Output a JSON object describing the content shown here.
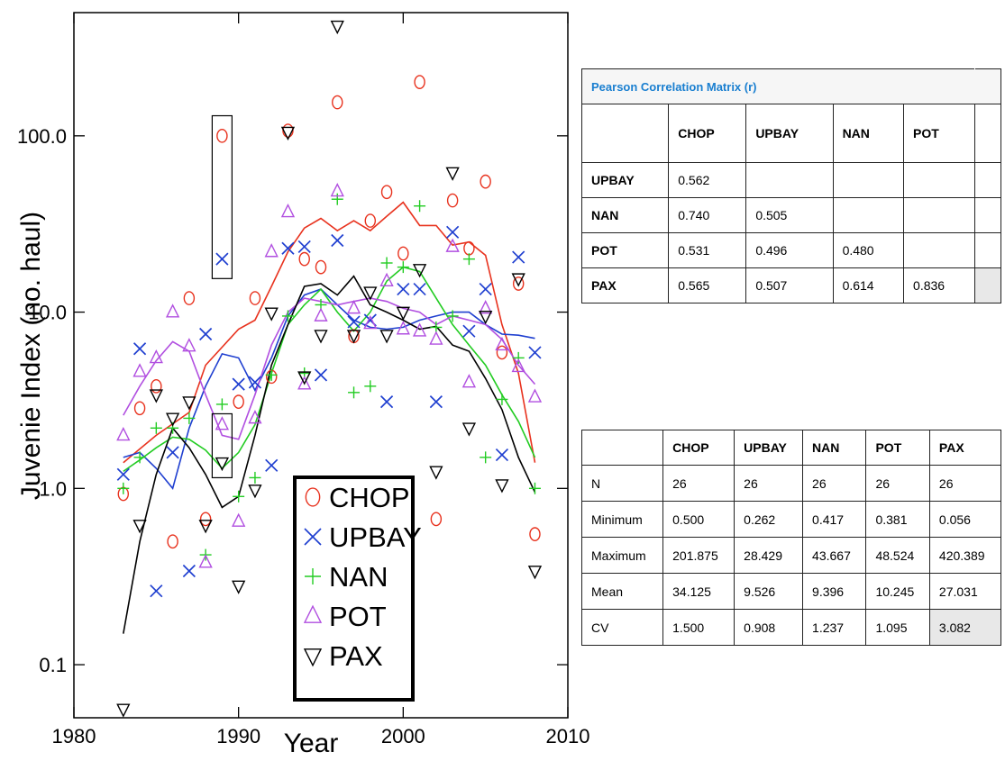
{
  "chart_data": {
    "type": "scatter",
    "xlabel": "Year",
    "ylabel": "Juvenie Index (no. haul)",
    "xlim": [
      1980,
      2010
    ],
    "ylim": [
      0.05,
      500
    ],
    "yscale": "log",
    "x_ticks": [
      "1980",
      "1990",
      "2000",
      "2010"
    ],
    "y_ticks": [
      "0.1",
      "1.0",
      "10.0",
      "100.0"
    ],
    "legend_placement": "bottom-right of plot",
    "series": [
      {
        "name": "CHOP",
        "color": "#e8321e",
        "marker": "circle",
        "points": [
          [
            1983,
            0.93
          ],
          [
            1984,
            2.85
          ],
          [
            1985,
            3.8
          ],
          [
            1986,
            0.5
          ],
          [
            1987,
            12
          ],
          [
            1988,
            0.67
          ],
          [
            1989,
            100
          ],
          [
            1990,
            3.1
          ],
          [
            1991,
            12
          ],
          [
            1992,
            4.3
          ],
          [
            1993,
            107
          ],
          [
            1994,
            20
          ],
          [
            1995,
            18
          ],
          [
            1996,
            155
          ],
          [
            1997,
            7.3
          ],
          [
            1998,
            33
          ],
          [
            1999,
            48
          ],
          [
            2000,
            21.5
          ],
          [
            2001,
            201.9
          ],
          [
            2002,
            0.67
          ],
          [
            2003,
            43
          ],
          [
            2004,
            23
          ],
          [
            2005,
            55
          ],
          [
            2006,
            5.9
          ],
          [
            2007,
            14.5
          ],
          [
            2008,
            0.55
          ]
        ],
        "trend": [
          [
            1983,
            1.4
          ],
          [
            1985,
            2.0
          ],
          [
            1987,
            2.7
          ],
          [
            1988,
            5.0
          ],
          [
            1990,
            8.0
          ],
          [
            1991,
            9.0
          ],
          [
            1992,
            14
          ],
          [
            1993,
            22
          ],
          [
            1994,
            30
          ],
          [
            1995,
            34
          ],
          [
            1996,
            29
          ],
          [
            1997,
            33
          ],
          [
            1998,
            29
          ],
          [
            1999,
            35
          ],
          [
            2000,
            42
          ],
          [
            2001,
            31
          ],
          [
            2002,
            31
          ],
          [
            2003,
            24
          ],
          [
            2004,
            25
          ],
          [
            2005,
            21
          ],
          [
            2006,
            8.5
          ],
          [
            2007,
            4.5
          ],
          [
            2008,
            1.4
          ]
        ]
      },
      {
        "name": "UPBAY",
        "color": "#1f3fd0",
        "marker": "x",
        "points": [
          [
            1983,
            1.2
          ],
          [
            1984,
            6.2
          ],
          [
            1985,
            0.262
          ],
          [
            1986,
            1.6
          ],
          [
            1987,
            0.34
          ],
          [
            1988,
            7.5
          ],
          [
            1989,
            20
          ],
          [
            1990,
            3.9
          ],
          [
            1991,
            4.0
          ],
          [
            1992,
            1.35
          ],
          [
            1993,
            23
          ],
          [
            1994,
            23.5
          ],
          [
            1995,
            4.4
          ],
          [
            1996,
            25.5
          ],
          [
            1997,
            8.8
          ],
          [
            1998,
            9.0
          ],
          [
            1999,
            3.1
          ],
          [
            2000,
            13.5
          ],
          [
            2001,
            13.5
          ],
          [
            2002,
            3.1
          ],
          [
            2003,
            28.4
          ],
          [
            2004,
            7.8
          ],
          [
            2005,
            13.5
          ],
          [
            2006,
            1.55
          ],
          [
            2007,
            20.5
          ],
          [
            2008,
            5.9
          ]
        ],
        "trend": [
          [
            1983,
            1.5
          ],
          [
            1984,
            1.6
          ],
          [
            1985,
            1.3
          ],
          [
            1986,
            1.0
          ],
          [
            1987,
            2.2
          ],
          [
            1988,
            3.8
          ],
          [
            1989,
            5.8
          ],
          [
            1990,
            5.5
          ],
          [
            1991,
            3.6
          ],
          [
            1992,
            5.5
          ],
          [
            1993,
            9.5
          ],
          [
            1994,
            12.5
          ],
          [
            1995,
            13.5
          ],
          [
            1996,
            11
          ],
          [
            1997,
            9.0
          ],
          [
            1998,
            8.2
          ],
          [
            1999,
            8.0
          ],
          [
            2000,
            8.2
          ],
          [
            2001,
            9.0
          ],
          [
            2002,
            9.5
          ],
          [
            2003,
            10
          ],
          [
            2004,
            10
          ],
          [
            2005,
            8.5
          ],
          [
            2006,
            7.5
          ],
          [
            2007,
            7.4
          ],
          [
            2008,
            7.1
          ]
        ]
      },
      {
        "name": "NAN",
        "color": "#22cc22",
        "marker": "plus",
        "points": [
          [
            1983,
            1.0
          ],
          [
            1984,
            1.5
          ],
          [
            1985,
            2.2
          ],
          [
            1986,
            2.2
          ],
          [
            1987,
            2.5
          ],
          [
            1988,
            0.42
          ],
          [
            1989,
            3.0
          ],
          [
            1990,
            0.9
          ],
          [
            1991,
            1.15
          ],
          [
            1992,
            4.4
          ],
          [
            1993,
            9.5
          ],
          [
            1994,
            4.5
          ],
          [
            1995,
            11
          ],
          [
            1996,
            43.7
          ],
          [
            1997,
            3.5
          ],
          [
            1998,
            3.8
          ],
          [
            1999,
            19
          ],
          [
            2000,
            18
          ],
          [
            2001,
            40
          ],
          [
            2002,
            8.2
          ],
          [
            2003,
            9.5
          ],
          [
            2004,
            20
          ],
          [
            2005,
            1.5
          ],
          [
            2006,
            3.2
          ],
          [
            2007,
            5.5
          ],
          [
            2008,
            1.0
          ]
        ],
        "trend": [
          [
            1983,
            1.25
          ],
          [
            1984,
            1.45
          ],
          [
            1985,
            1.7
          ],
          [
            1986,
            1.95
          ],
          [
            1987,
            1.9
          ],
          [
            1988,
            1.65
          ],
          [
            1989,
            1.3
          ],
          [
            1990,
            1.6
          ],
          [
            1991,
            2.3
          ],
          [
            1992,
            4.5
          ],
          [
            1993,
            8.5
          ],
          [
            1994,
            11
          ],
          [
            1995,
            13.5
          ],
          [
            1996,
            10
          ],
          [
            1997,
            7.8
          ],
          [
            1998,
            10
          ],
          [
            1999,
            15
          ],
          [
            2000,
            18
          ],
          [
            2001,
            17
          ],
          [
            2002,
            12
          ],
          [
            2003,
            8.5
          ],
          [
            2004,
            6.5
          ],
          [
            2005,
            5.0
          ],
          [
            2006,
            3.4
          ],
          [
            2007,
            2.4
          ],
          [
            2008,
            1.5
          ]
        ]
      },
      {
        "name": "POT",
        "color": "#b14fe0",
        "marker": "triangle",
        "points": [
          [
            1983,
            2.0
          ],
          [
            1984,
            4.6
          ],
          [
            1985,
            5.5
          ],
          [
            1986,
            10
          ],
          [
            1987,
            6.4
          ],
          [
            1988,
            0.38
          ],
          [
            1989,
            2.3
          ],
          [
            1990,
            0.65
          ],
          [
            1991,
            2.5
          ],
          [
            1992,
            22
          ],
          [
            1993,
            37
          ],
          [
            1994,
            3.9
          ],
          [
            1995,
            9.5
          ],
          [
            1996,
            48.5
          ],
          [
            1997,
            10.5
          ],
          [
            1998,
            8.6
          ],
          [
            1999,
            15
          ],
          [
            2000,
            8.0
          ],
          [
            2001,
            7.8
          ],
          [
            2002,
            7.0
          ],
          [
            2003,
            23.5
          ],
          [
            2004,
            4.0
          ],
          [
            2005,
            10.5
          ],
          [
            2006,
            6.5
          ],
          [
            2007,
            4.9
          ],
          [
            2008,
            3.3
          ]
        ],
        "trend": [
          [
            1983,
            2.6
          ],
          [
            1984,
            3.8
          ],
          [
            1985,
            5.3
          ],
          [
            1986,
            6.8
          ],
          [
            1987,
            6.0
          ],
          [
            1988,
            3.4
          ],
          [
            1989,
            2.0
          ],
          [
            1990,
            1.9
          ],
          [
            1991,
            3.4
          ],
          [
            1992,
            6.5
          ],
          [
            1993,
            10
          ],
          [
            1994,
            12
          ],
          [
            1995,
            11.5
          ],
          [
            1996,
            11
          ],
          [
            1997,
            11.5
          ],
          [
            1998,
            12
          ],
          [
            1999,
            11.5
          ],
          [
            2000,
            10.5
          ],
          [
            2001,
            10
          ],
          [
            2002,
            8.5
          ],
          [
            2003,
            9.5
          ],
          [
            2004,
            9.0
          ],
          [
            2005,
            8.5
          ],
          [
            2006,
            7.0
          ],
          [
            2007,
            5.0
          ],
          [
            2008,
            3.9
          ]
        ]
      },
      {
        "name": "PAX",
        "color": "#000000",
        "marker": "triangle-down",
        "points": [
          [
            1983,
            0.056
          ],
          [
            1984,
            0.62
          ],
          [
            1985,
            3.4
          ],
          [
            1986,
            2.5
          ],
          [
            1987,
            3.1
          ],
          [
            1988,
            0.62
          ],
          [
            1989,
            1.4
          ],
          [
            1990,
            0.28
          ],
          [
            1991,
            0.98
          ],
          [
            1992,
            9.9
          ],
          [
            1993,
            105
          ],
          [
            1994,
            4.3
          ],
          [
            1995,
            7.4
          ],
          [
            1996,
            420.4
          ],
          [
            1997,
            7.4
          ],
          [
            1998,
            13
          ],
          [
            1999,
            7.4
          ],
          [
            2000,
            10
          ],
          [
            2001,
            17.5
          ],
          [
            2002,
            1.25
          ],
          [
            2003,
            62
          ],
          [
            2004,
            2.2
          ],
          [
            2005,
            9.5
          ],
          [
            2006,
            1.05
          ],
          [
            2007,
            15.5
          ],
          [
            2008,
            0.34
          ]
        ],
        "trend": [
          [
            1983,
            0.15
          ],
          [
            1984,
            0.5
          ],
          [
            1985,
            1.2
          ],
          [
            1986,
            2.2
          ],
          [
            1987,
            1.7
          ],
          [
            1988,
            1.2
          ],
          [
            1989,
            0.78
          ],
          [
            1990,
            0.9
          ],
          [
            1991,
            2.0
          ],
          [
            1992,
            5.0
          ],
          [
            1993,
            8.5
          ],
          [
            1994,
            14
          ],
          [
            1995,
            14.5
          ],
          [
            1996,
            12.5
          ],
          [
            1997,
            16
          ],
          [
            1998,
            11
          ],
          [
            1999,
            10
          ],
          [
            2000,
            9.0
          ],
          [
            2001,
            8.0
          ],
          [
            2002,
            8.3
          ],
          [
            2003,
            6.5
          ],
          [
            2004,
            6.0
          ],
          [
            2005,
            4.2
          ],
          [
            2006,
            2.8
          ],
          [
            2007,
            1.5
          ],
          [
            2008,
            0.95
          ]
        ]
      }
    ]
  },
  "correlation_table": {
    "title": "Pearson Correlation Matrix (r)",
    "columns": [
      "CHOP",
      "UPBAY",
      "NAN",
      "POT"
    ],
    "rows": [
      {
        "label": "UPBAY",
        "values": [
          "0.562",
          "",
          "",
          ""
        ]
      },
      {
        "label": "NAN",
        "values": [
          "0.740",
          "0.505",
          "",
          ""
        ]
      },
      {
        "label": "POT",
        "values": [
          "0.531",
          "0.496",
          "0.480",
          ""
        ]
      },
      {
        "label": "PAX",
        "values": [
          "0.565",
          "0.507",
          "0.614",
          "0.836"
        ]
      }
    ]
  },
  "stats_table": {
    "columns": [
      "CHOP",
      "UPBAY",
      "NAN",
      "POT",
      "PAX"
    ],
    "rows": [
      {
        "label": "N",
        "values": [
          "26",
          "26",
          "26",
          "26",
          "26"
        ]
      },
      {
        "label": "Minimum",
        "values": [
          "0.500",
          "0.262",
          "0.417",
          "0.381",
          "0.056"
        ]
      },
      {
        "label": "Maximum",
        "values": [
          "201.875",
          "28.429",
          "43.667",
          "48.524",
          "420.389"
        ]
      },
      {
        "label": "Mean",
        "values": [
          "34.125",
          "9.526",
          "9.396",
          "10.245",
          "27.031"
        ]
      },
      {
        "label": "CV",
        "values": [
          "1.500",
          "0.908",
          "1.237",
          "1.095",
          "3.082"
        ]
      }
    ]
  }
}
